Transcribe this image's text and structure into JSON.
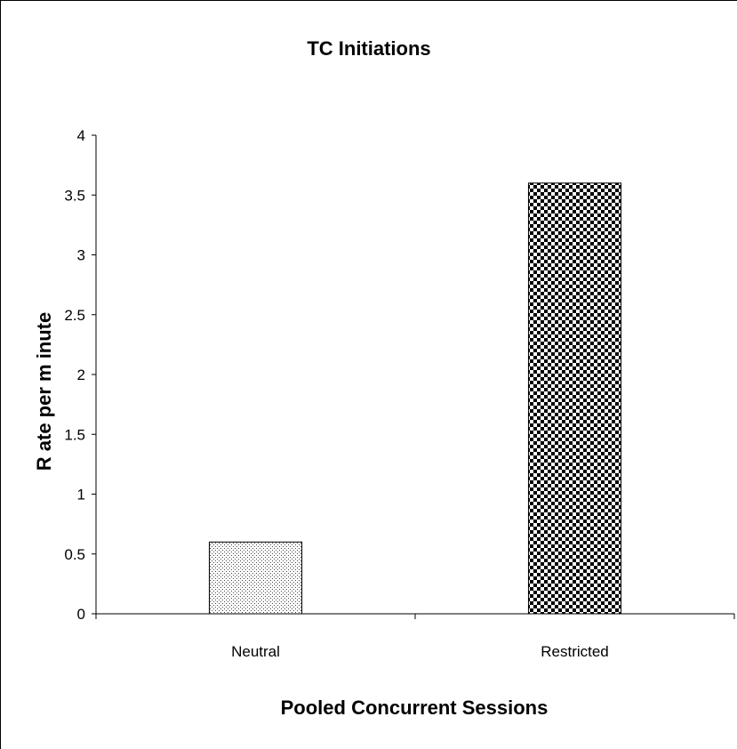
{
  "chart_data": {
    "type": "bar",
    "title": "TC Initiations",
    "xlabel": "Pooled Concurrent Sessions",
    "ylabel": "R ate  per m inute",
    "categories": [
      "Neutral",
      "Restricted"
    ],
    "values": [
      0.6,
      3.6
    ],
    "ylim": [
      0,
      4
    ],
    "yticks": [
      "0",
      "0.5",
      "1",
      "1.5",
      "2",
      "2.5",
      "3",
      "3.5",
      "4"
    ],
    "bar_patterns": [
      "fine-dots",
      "checkerboard"
    ],
    "grid": false,
    "legend": "none"
  }
}
